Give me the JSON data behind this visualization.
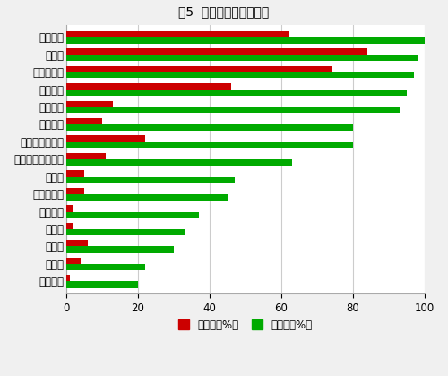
{
  "title": "図5  油の認知度と使用度",
  "categories": [
    "サラダ油",
    "ごま油",
    "オリーブ油",
    "なたね油",
    "べに花油",
    "コーン油",
    "コレステロール",
    "グレープシード油",
    "大豆油",
    "ひまわり油",
    "パーム油",
    "綵実油",
    "こめ油",
    "シソ油",
    "落花生油"
  ],
  "usage": [
    62,
    84,
    74,
    46,
    13,
    10,
    22,
    11,
    5,
    5,
    2,
    2,
    6,
    4,
    1
  ],
  "awareness": [
    100,
    98,
    97,
    95,
    93,
    80,
    80,
    63,
    47,
    45,
    37,
    33,
    30,
    22,
    20
  ],
  "usage_color": "#cc0000",
  "awareness_color": "#00aa00",
  "bar_height": 0.38,
  "xlim": [
    0,
    100
  ],
  "xticks": [
    0,
    20,
    40,
    60,
    80,
    100
  ],
  "legend_usage": "使用度（%）",
  "legend_awareness": "認知度（%）",
  "background_color": "#f0f0f0",
  "plot_background": "#ffffff",
  "grid_color": "#cccccc",
  "title_fontsize": 10,
  "label_fontsize": 8.5,
  "tick_fontsize": 8.5,
  "legend_fontsize": 8.5
}
